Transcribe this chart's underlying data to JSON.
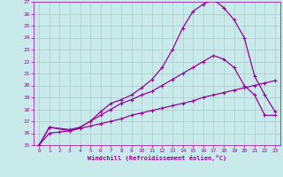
{
  "xlabel": "Windchill (Refroidissement éolien,°C)",
  "bg_color": "#c8eaea",
  "line_color": "#990099",
  "grid_color": "#b0c8c8",
  "xlim": [
    -0.5,
    23.5
  ],
  "ylim": [
    15,
    27
  ],
  "xticks": [
    0,
    1,
    2,
    3,
    4,
    5,
    6,
    7,
    8,
    9,
    10,
    11,
    12,
    13,
    14,
    15,
    16,
    17,
    18,
    19,
    20,
    21,
    22,
    23
  ],
  "yticks": [
    15,
    16,
    17,
    18,
    19,
    20,
    21,
    22,
    23,
    24,
    25,
    26,
    27
  ],
  "line1_x": [
    0,
    1,
    2,
    3,
    4,
    5,
    6,
    7,
    8,
    9,
    10,
    11,
    12,
    13,
    14,
    15,
    16,
    17,
    18,
    19,
    20,
    21,
    22,
    23
  ],
  "line1_y": [
    15,
    16.0,
    16.1,
    16.2,
    16.4,
    16.6,
    16.8,
    17.0,
    17.2,
    17.5,
    17.7,
    17.9,
    18.1,
    18.3,
    18.5,
    18.7,
    19.0,
    19.2,
    19.4,
    19.6,
    19.8,
    20.0,
    20.2,
    20.4
  ],
  "line2_x": [
    0,
    1,
    3,
    4,
    5,
    6,
    7,
    8,
    9,
    10,
    11,
    12,
    13,
    14,
    15,
    16,
    17,
    18,
    19,
    20,
    21,
    22,
    23
  ],
  "line2_y": [
    15,
    16.5,
    16.3,
    16.5,
    17.0,
    17.5,
    18.0,
    18.5,
    18.8,
    19.2,
    19.5,
    20.0,
    20.5,
    21.0,
    21.5,
    22.0,
    22.5,
    22.2,
    21.5,
    20.0,
    19.2,
    17.5,
    17.5
  ],
  "line3_x": [
    0,
    1,
    3,
    4,
    5,
    6,
    7,
    8,
    9,
    10,
    11,
    12,
    13,
    14,
    15,
    16,
    17,
    18,
    19,
    20,
    21,
    22,
    23
  ],
  "line3_y": [
    15,
    16.5,
    16.2,
    16.5,
    17.0,
    17.8,
    18.5,
    18.8,
    19.2,
    19.8,
    20.5,
    21.5,
    23.0,
    24.8,
    26.2,
    26.8,
    27.2,
    26.5,
    25.5,
    24.0,
    20.8,
    19.2,
    17.8
  ]
}
